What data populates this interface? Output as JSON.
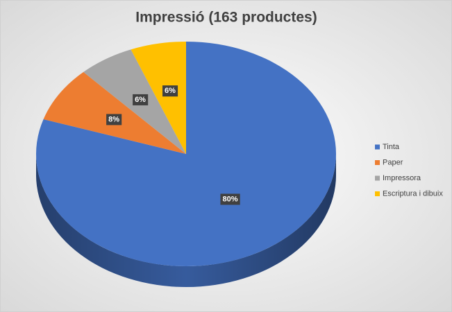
{
  "chart_data": {
    "type": "pie",
    "title": "Impressió (163 productes)",
    "categories": [
      "Tinta",
      "Paper",
      "Impressora",
      "Escriptura i dibuix"
    ],
    "values": [
      80,
      8,
      6,
      6
    ],
    "value_labels": [
      "80%",
      "8%",
      "6%",
      "6%"
    ],
    "colors": [
      "#4472c4",
      "#ed7d31",
      "#a5a5a5",
      "#ffc000"
    ],
    "legend": "right"
  }
}
